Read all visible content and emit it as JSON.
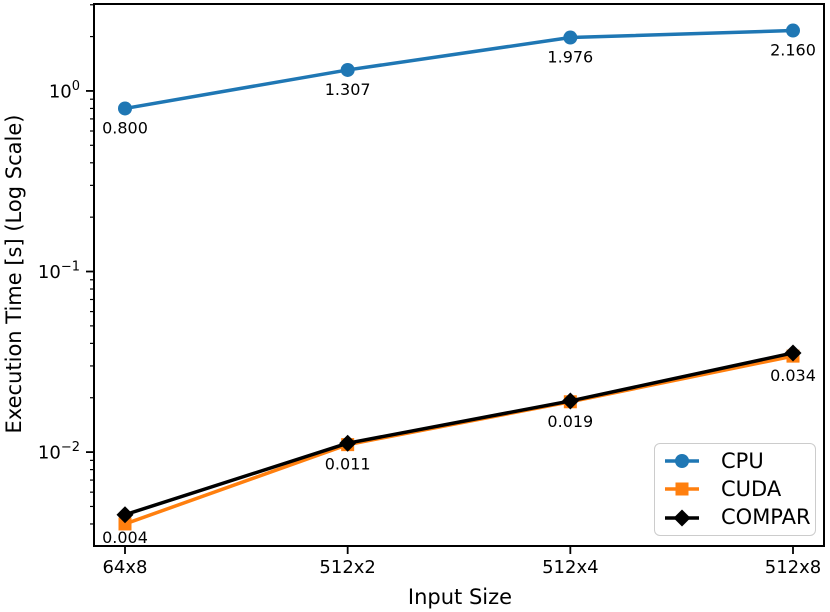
{
  "chart_data": {
    "type": "line",
    "title": "",
    "xlabel": "Input Size",
    "ylabel": "Execution Time [s] (Log Scale)",
    "x_categories": [
      "64x8",
      "512x2",
      "512x4",
      "512x8"
    ],
    "yscale": "log",
    "ylim": [
      0.00302,
      3.03
    ],
    "grid": false,
    "y_major_ticks": [
      {
        "value": 1,
        "base": "10",
        "exp": "0",
        "label": "10⁰"
      },
      {
        "value": 0.1,
        "base": "10",
        "exp": "−1",
        "label": "10⁻¹"
      },
      {
        "value": 0.01,
        "base": "10",
        "exp": "−2",
        "label": "10⁻²"
      }
    ],
    "legend": {
      "position": "lower right",
      "entries": [
        "CPU",
        "CUDA",
        "COMPAR"
      ]
    },
    "series": [
      {
        "name": "CPU",
        "color": "#1f77b4",
        "marker": "circle",
        "values": [
          0.8,
          1.307,
          1.976,
          2.16
        ],
        "point_labels": [
          "0.800",
          "1.307",
          "1.976",
          "2.160"
        ]
      },
      {
        "name": "CUDA",
        "color": "#ff7f0e",
        "marker": "square",
        "values": [
          0.004,
          0.011,
          0.019,
          0.034
        ],
        "point_labels": [
          "0.004",
          "0.011",
          "0.019",
          "0.034"
        ]
      },
      {
        "name": "COMPAR",
        "color": "#000000",
        "marker": "diamond",
        "values": [
          0.0045,
          0.0112,
          0.0192,
          0.0354
        ],
        "point_labels": []
      }
    ]
  }
}
